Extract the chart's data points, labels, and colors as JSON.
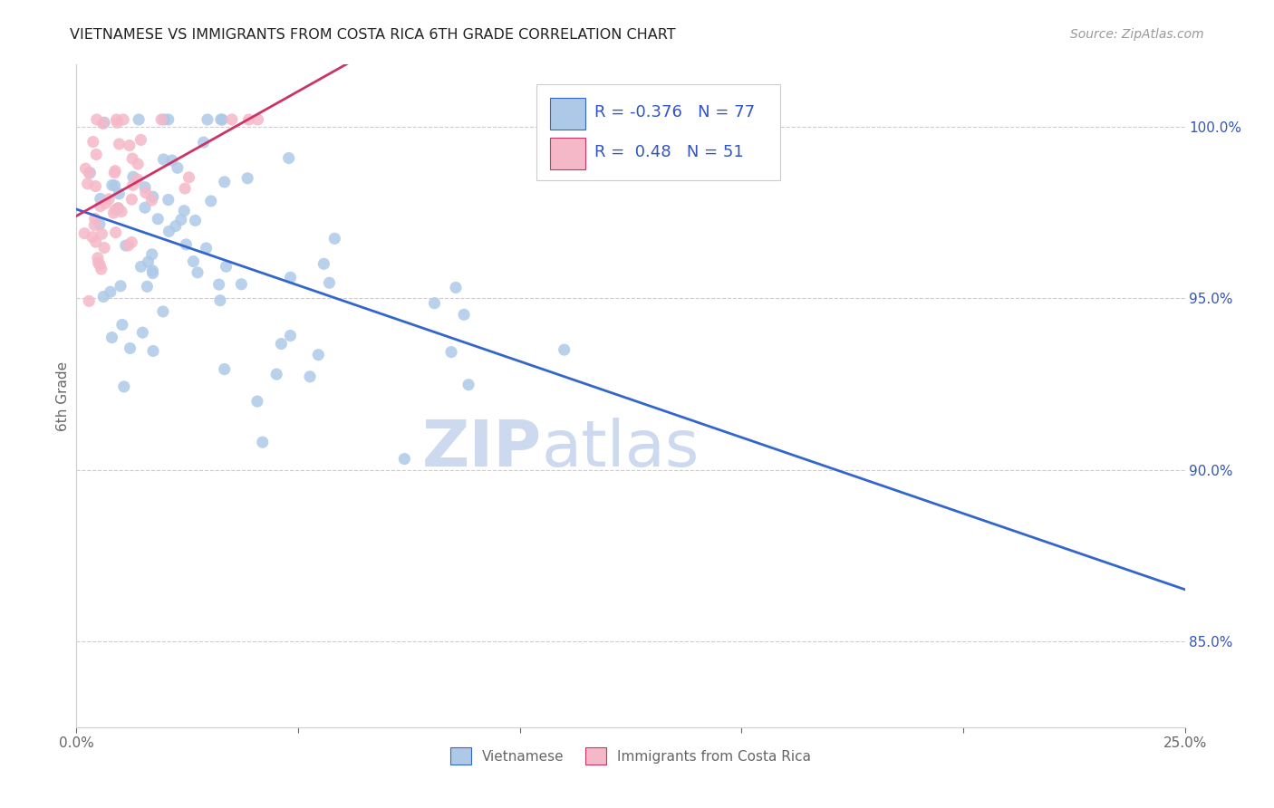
{
  "title": "VIETNAMESE VS IMMIGRANTS FROM COSTA RICA 6TH GRADE CORRELATION CHART",
  "source": "Source: ZipAtlas.com",
  "ylabel": "6th Grade",
  "ytick_labels": [
    "85.0%",
    "90.0%",
    "95.0%",
    "100.0%"
  ],
  "ytick_values": [
    0.85,
    0.9,
    0.95,
    1.0
  ],
  "xmin": 0.0,
  "xmax": 0.25,
  "ymin": 0.825,
  "ymax": 1.018,
  "legend_blue_label": "Vietnamese",
  "legend_pink_label": "Immigrants from Costa Rica",
  "R_blue": -0.376,
  "N_blue": 77,
  "R_pink": 0.48,
  "N_pink": 51,
  "blue_color": "#aec9e8",
  "pink_color": "#f5b8c8",
  "blue_line_color": "#3366cc",
  "pink_line_color": "#cc3366",
  "title_color": "#222222",
  "source_color": "#999999",
  "axis_label_color": "#666666",
  "ytick_color": "#3355bb",
  "grid_color": "#cccccc",
  "watermark_zip_color": "#ccd9ee",
  "watermark_atlas_color": "#ccd9ee",
  "legend_border_color": "#cccccc"
}
